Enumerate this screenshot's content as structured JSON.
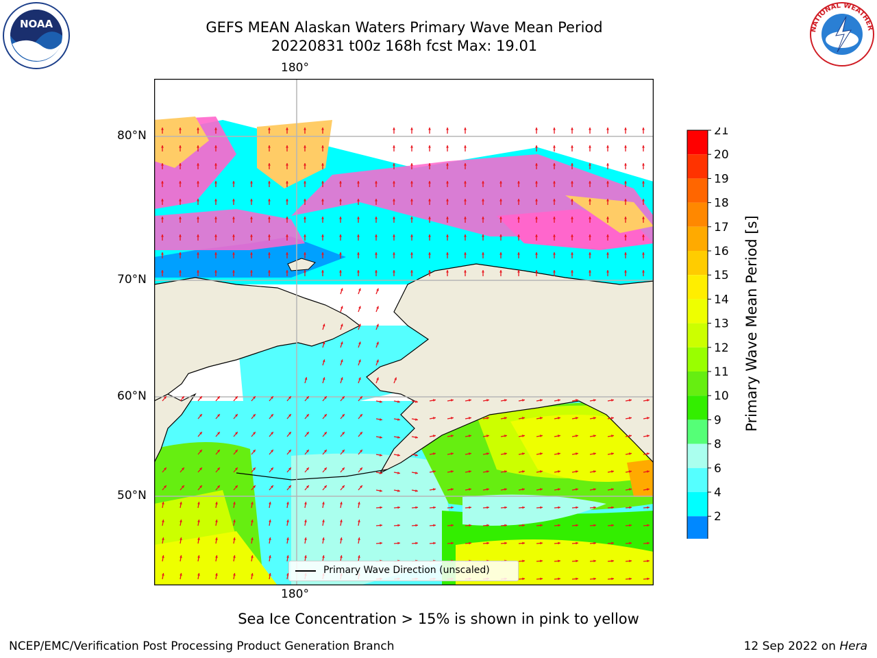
{
  "header": {
    "title_line1": "GEFS MEAN Alaskan Waters Primary Wave Mean Period",
    "title_line2": "20220831 t00z 168h fcst   Max: 19.01"
  },
  "map": {
    "lon_label_top": "180°",
    "lon_label_bottom": "180°",
    "lat_labels": [
      "80°N",
      "70°N",
      "60°N",
      "50°N"
    ],
    "legend_label": "Primary Wave Direction (unscaled)",
    "colors": {
      "land": "#efecdc",
      "coast": "#000000",
      "grid": "#b5b5b5",
      "arrow": "#e8141c",
      "ice_pink": "#ff66cc",
      "ice_yellow": "#ffcc66"
    }
  },
  "colorbar": {
    "title": "Primary Wave Mean Period [s]",
    "ticks": [
      "21",
      "20",
      "19",
      "18",
      "17",
      "16",
      "15",
      "14",
      "13",
      "12",
      "11",
      "10",
      "9",
      "8",
      "6",
      "4",
      "2"
    ],
    "colors": [
      "#ff0000",
      "#ff3300",
      "#ff6600",
      "#ff8800",
      "#ffaa00",
      "#ffcc00",
      "#ffee00",
      "#eeff00",
      "#ccff00",
      "#99ff00",
      "#66ee11",
      "#33ee00",
      "#55ff77",
      "#aaffee",
      "#55ffff",
      "#00ffff",
      "#0088ff"
    ],
    "extend_color": "#0000ee"
  },
  "footer": {
    "note": "Sea Ice Concentration > 15% is shown in pink to yellow",
    "left": "NCEP/EMC/Verification Post Processing Product Generation Branch",
    "right_date": "12 Sep 2022 on",
    "right_host": "Hera"
  },
  "logos": {
    "noaa_text": "NOAA",
    "nws_text": "NATIONAL WEATHER SERVICE"
  }
}
